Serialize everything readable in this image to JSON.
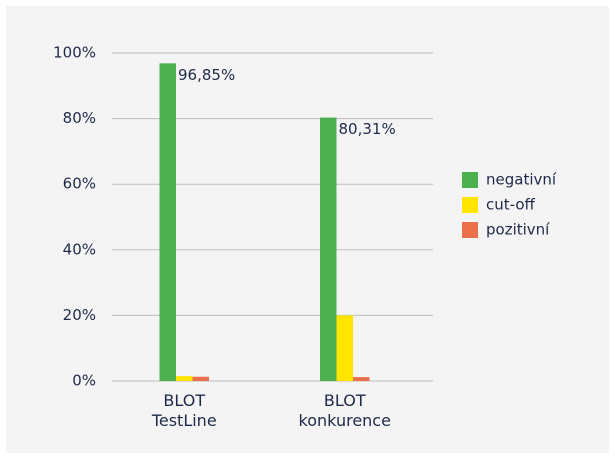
{
  "chart_data": {
    "type": "bar",
    "categories": [
      "BLOT\nTestLine",
      "BLOT\nkonkurence"
    ],
    "series": [
      {
        "name": "negativní",
        "color": "#4caf50",
        "values": [
          96.85,
          80.31
        ],
        "value_labels": [
          "96,85%",
          "80,31%"
        ]
      },
      {
        "name": "cut-off",
        "color": "#ffe500",
        "values": [
          1.5,
          20
        ]
      },
      {
        "name": "pozitivní",
        "color": "#ec6f4b",
        "values": [
          1.3,
          1.2
        ]
      }
    ],
    "ylim": [
      0,
      100
    ],
    "yticks": [
      {
        "value": 0,
        "label": "0%"
      },
      {
        "value": 20,
        "label": "20%"
      },
      {
        "value": 40,
        "label": "40%"
      },
      {
        "value": 60,
        "label": "60%"
      },
      {
        "value": 80,
        "label": "80%"
      },
      {
        "value": 100,
        "label": "100%"
      }
    ],
    "grid": true,
    "legend": "right"
  }
}
